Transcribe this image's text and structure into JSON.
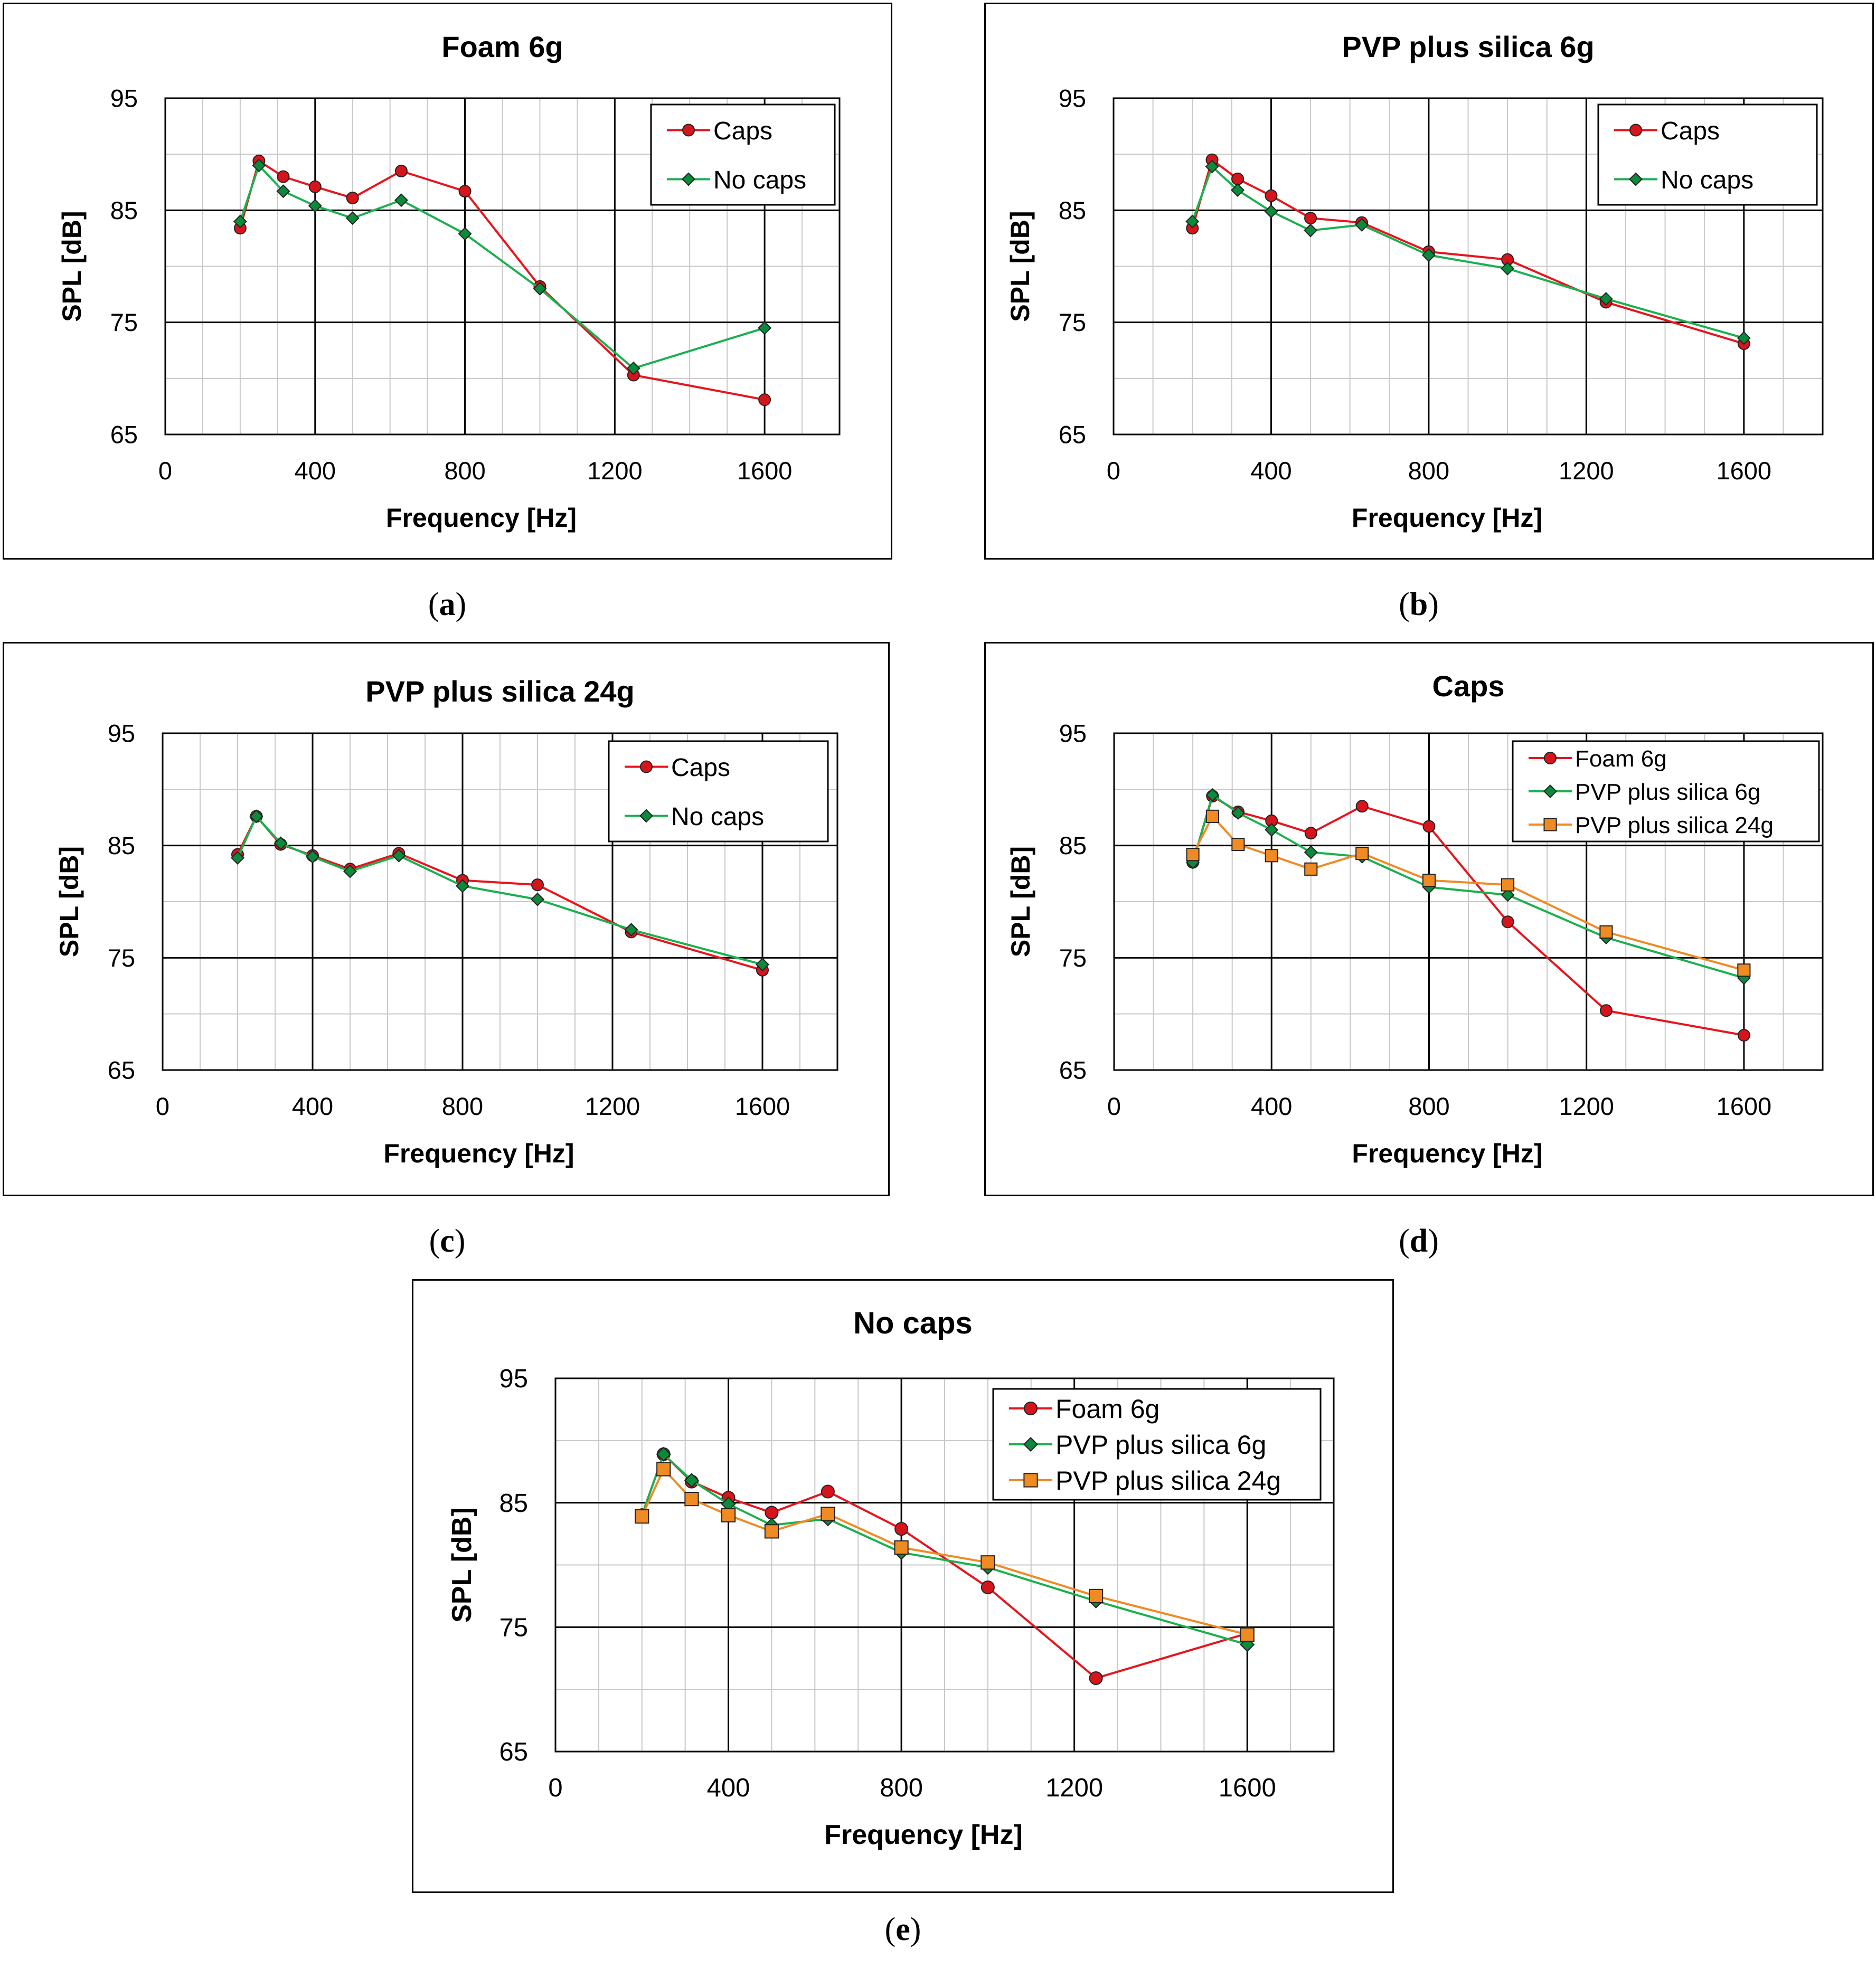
{
  "colors": {
    "caps": "#e8141c",
    "nocaps": "#1ab04e",
    "foam": "#e8141c",
    "pvp6": "#1ab04e",
    "pvp24": "#ef8a24",
    "marker_foam": "#d6141c",
    "marker_pvp6": "#0a8a3a",
    "marker_pvp24": "#f08a22"
  },
  "captions": [
    "a",
    "b",
    "c",
    "d",
    "e"
  ],
  "chart_data": [
    {
      "type": "line",
      "title": "Foam 6g",
      "xlabel": "Frequency [Hz]",
      "ylabel": "SPL [dB]",
      "xlim": [
        0,
        1800
      ],
      "ylim": [
        65,
        95
      ],
      "xticks": [
        0,
        400,
        800,
        1200,
        1600
      ],
      "yticks": [
        65,
        75,
        85,
        95
      ],
      "x": [
        200,
        250,
        315,
        400,
        500,
        630,
        800,
        1000,
        1250,
        1600
      ],
      "series": [
        {
          "name": "Caps",
          "marker": "circle",
          "color_key": "caps",
          "values": [
            83.4,
            89.4,
            88.0,
            87.1,
            86.1,
            88.5,
            86.7,
            78.2,
            70.3,
            68.1
          ]
        },
        {
          "name": "No caps",
          "marker": "diamond",
          "color_key": "nocaps",
          "values": [
            84.0,
            89.0,
            86.7,
            85.4,
            84.3,
            85.9,
            82.9,
            78.0,
            70.9,
            74.5
          ]
        }
      ]
    },
    {
      "type": "line",
      "title": "PVP plus silica 6g",
      "xlabel": "Frequency [Hz]",
      "ylabel": "SPL [dB]",
      "xlim": [
        0,
        1800
      ],
      "ylim": [
        65,
        95
      ],
      "xticks": [
        0,
        400,
        800,
        1200,
        1600
      ],
      "yticks": [
        65,
        75,
        85,
        95
      ],
      "x": [
        200,
        250,
        315,
        400,
        500,
        630,
        800,
        1000,
        1250,
        1600
      ],
      "series": [
        {
          "name": "Caps",
          "marker": "circle",
          "color_key": "caps",
          "values": [
            83.4,
            89.5,
            87.8,
            86.3,
            84.3,
            83.9,
            81.3,
            80.6,
            76.8,
            73.1
          ]
        },
        {
          "name": "No caps",
          "marker": "diamond",
          "color_key": "nocaps",
          "values": [
            84.0,
            88.9,
            86.8,
            84.9,
            83.2,
            83.7,
            81.0,
            79.8,
            77.1,
            73.6
          ]
        }
      ]
    },
    {
      "type": "line",
      "title": "PVP plus silica 24g",
      "xlabel": "Frequency [Hz]",
      "ylabel": "SPL [dB]",
      "xlim": [
        0,
        1800
      ],
      "ylim": [
        65,
        95
      ],
      "xticks": [
        0,
        400,
        800,
        1200,
        1600
      ],
      "yticks": [
        65,
        75,
        85,
        95
      ],
      "x": [
        200,
        250,
        315,
        400,
        500,
        630,
        800,
        1000,
        1250,
        1600
      ],
      "series": [
        {
          "name": "Caps",
          "marker": "circle",
          "color_key": "caps",
          "values": [
            84.2,
            87.6,
            85.1,
            84.1,
            82.9,
            84.3,
            81.9,
            81.5,
            77.3,
            73.9
          ]
        },
        {
          "name": "No caps",
          "marker": "diamond",
          "color_key": "nocaps",
          "values": [
            83.9,
            87.6,
            85.2,
            84.0,
            82.7,
            84.1,
            81.4,
            80.2,
            77.5,
            74.4
          ]
        }
      ]
    },
    {
      "type": "line",
      "title": "Caps",
      "xlabel": "Frequency [Hz]",
      "ylabel": "SPL [dB]",
      "xlim": [
        0,
        1800
      ],
      "ylim": [
        65,
        95
      ],
      "xticks": [
        0,
        400,
        800,
        1200,
        1600
      ],
      "yticks": [
        65,
        75,
        85,
        95
      ],
      "x": [
        200,
        250,
        315,
        400,
        500,
        630,
        800,
        1000,
        1250,
        1600
      ],
      "series": [
        {
          "name": "Foam 6g",
          "marker": "circle",
          "color_key": "foam",
          "values": [
            83.5,
            89.4,
            88.0,
            87.2,
            86.1,
            88.5,
            86.7,
            78.2,
            70.3,
            68.1
          ]
        },
        {
          "name": "PVP plus silica 6g",
          "marker": "diamond",
          "color_key": "pvp6",
          "values": [
            83.5,
            89.5,
            87.9,
            86.4,
            84.4,
            84.0,
            81.3,
            80.6,
            76.8,
            73.2
          ]
        },
        {
          "name": "PVP plus silica 24g",
          "marker": "square",
          "color_key": "pvp24",
          "values": [
            84.2,
            87.6,
            85.1,
            84.1,
            82.9,
            84.3,
            81.9,
            81.5,
            77.3,
            73.9
          ]
        }
      ]
    },
    {
      "type": "line",
      "title": "No caps",
      "xlabel": "Frequency [Hz]",
      "ylabel": "SPL [dB]",
      "xlim": [
        0,
        1800
      ],
      "ylim": [
        65,
        95
      ],
      "xticks": [
        0,
        400,
        800,
        1200,
        1600
      ],
      "yticks": [
        65,
        75,
        85,
        95
      ],
      "x": [
        200,
        250,
        315,
        400,
        500,
        630,
        800,
        1000,
        1250,
        1600
      ],
      "series": [
        {
          "name": "Foam 6g",
          "marker": "circle",
          "color_key": "foam",
          "values": [
            84.0,
            88.9,
            86.7,
            85.4,
            84.2,
            85.9,
            82.9,
            78.2,
            70.9,
            74.5
          ]
        },
        {
          "name": "PVP plus silica 6g",
          "marker": "diamond",
          "color_key": "pvp6",
          "values": [
            84.0,
            88.9,
            86.8,
            84.9,
            83.2,
            83.7,
            81.0,
            79.8,
            77.1,
            73.6
          ]
        },
        {
          "name": "PVP plus silica 24g",
          "marker": "square",
          "color_key": "pvp24",
          "values": [
            83.9,
            87.7,
            85.3,
            84.0,
            82.7,
            84.1,
            81.4,
            80.2,
            77.5,
            74.4
          ]
        }
      ]
    }
  ]
}
